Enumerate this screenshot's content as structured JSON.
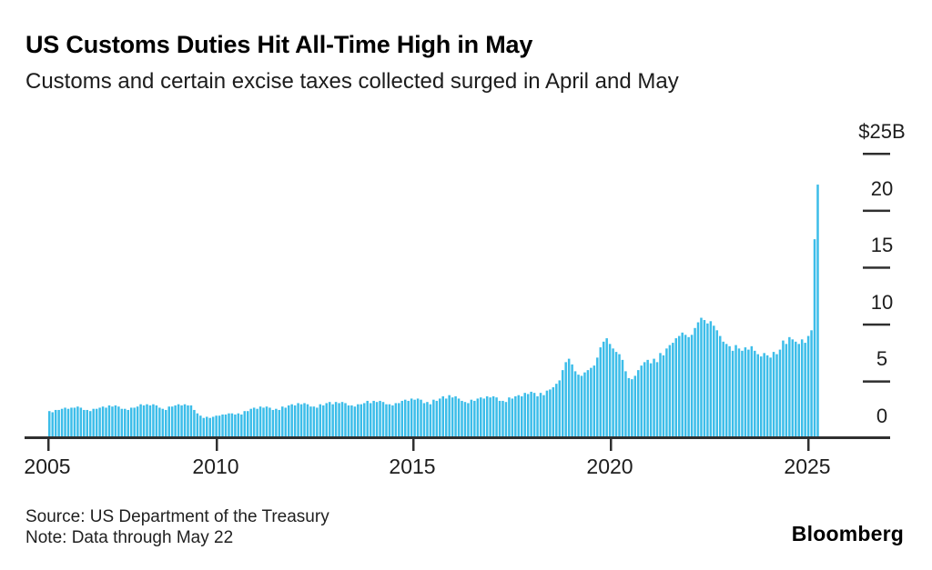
{
  "header": {
    "title": "US Customs Duties Hit All-Time High in May",
    "subtitle": "Customs and certain excise taxes collected surged in April and May"
  },
  "footer": {
    "source": "Source: US Department of the Treasury",
    "note": "Note: Data through May 22",
    "brand": "Bloomberg"
  },
  "chart_data": {
    "type": "bar",
    "title": "US Customs Duties Hit All-Time High in May",
    "subtitle": "Customs and certain excise taxes collected surged in April and May",
    "unit": "USD billions per month",
    "frequency": "monthly",
    "start_month": "2005-01",
    "end_month": "2025-05",
    "ylim": [
      0,
      25
    ],
    "grid": false,
    "legend": "none",
    "axis_side": "right",
    "bar_color": "#3cbde9",
    "axis_color": "#2f2f2f",
    "yticks": {
      "values": [
        25,
        20,
        15,
        10,
        5,
        0
      ],
      "labels": [
        "$25B",
        "20",
        "15",
        "10",
        "5",
        "0"
      ]
    },
    "xticks": [
      "2005",
      "2010",
      "2015",
      "2020",
      "2025"
    ],
    "values": [
      2.3,
      2.2,
      2.4,
      2.4,
      2.5,
      2.6,
      2.5,
      2.6,
      2.6,
      2.7,
      2.6,
      2.4,
      2.4,
      2.3,
      2.5,
      2.5,
      2.6,
      2.7,
      2.6,
      2.8,
      2.7,
      2.8,
      2.7,
      2.5,
      2.5,
      2.4,
      2.6,
      2.6,
      2.7,
      2.9,
      2.8,
      2.9,
      2.8,
      2.9,
      2.8,
      2.6,
      2.5,
      2.4,
      2.7,
      2.7,
      2.8,
      2.9,
      2.8,
      2.9,
      2.8,
      2.8,
      2.4,
      2.1,
      1.9,
      1.7,
      1.8,
      1.7,
      1.8,
      1.9,
      1.9,
      2.0,
      2.0,
      2.1,
      2.1,
      2.0,
      2.1,
      2.0,
      2.3,
      2.3,
      2.5,
      2.6,
      2.5,
      2.7,
      2.6,
      2.7,
      2.6,
      2.4,
      2.5,
      2.4,
      2.7,
      2.6,
      2.8,
      2.9,
      2.8,
      3.0,
      2.9,
      3.0,
      2.9,
      2.7,
      2.7,
      2.6,
      2.9,
      2.8,
      3.0,
      3.1,
      2.9,
      3.1,
      3.0,
      3.1,
      3.0,
      2.8,
      2.8,
      2.7,
      2.9,
      2.9,
      3.0,
      3.2,
      3.0,
      3.2,
      3.1,
      3.2,
      3.1,
      2.9,
      2.9,
      2.8,
      3.0,
      3.0,
      3.2,
      3.3,
      3.2,
      3.4,
      3.3,
      3.4,
      3.3,
      3.0,
      3.1,
      2.9,
      3.3,
      3.2,
      3.4,
      3.6,
      3.4,
      3.7,
      3.5,
      3.6,
      3.4,
      3.2,
      3.1,
      3.0,
      3.3,
      3.2,
      3.4,
      3.5,
      3.4,
      3.6,
      3.5,
      3.6,
      3.5,
      3.2,
      3.2,
      3.1,
      3.5,
      3.4,
      3.6,
      3.7,
      3.6,
      3.9,
      3.8,
      4.0,
      3.9,
      3.6,
      3.9,
      3.7,
      4.1,
      4.2,
      4.4,
      4.7,
      5.0,
      5.9,
      6.6,
      6.9,
      6.4,
      5.8,
      5.5,
      5.4,
      5.7,
      5.9,
      6.1,
      6.3,
      7.0,
      7.9,
      8.4,
      8.7,
      8.2,
      7.8,
      7.5,
      7.3,
      6.8,
      5.8,
      5.2,
      5.1,
      5.4,
      5.9,
      6.3,
      6.6,
      6.8,
      6.5,
      6.9,
      6.6,
      7.4,
      7.2,
      7.8,
      8.1,
      8.3,
      8.7,
      8.9,
      9.2,
      9.0,
      8.8,
      9.0,
      9.6,
      10.1,
      10.5,
      10.3,
      10.0,
      10.2,
      9.8,
      9.4,
      8.9,
      8.4,
      8.2,
      8.0,
      7.6,
      8.1,
      7.8,
      7.6,
      7.9,
      7.7,
      8.0,
      7.6,
      7.3,
      7.1,
      7.4,
      7.2,
      7.0,
      7.5,
      7.3,
      7.7,
      8.5,
      8.2,
      8.8,
      8.6,
      8.4,
      8.2,
      8.6,
      8.3,
      8.9,
      9.4,
      17.4,
      22.2
    ]
  }
}
